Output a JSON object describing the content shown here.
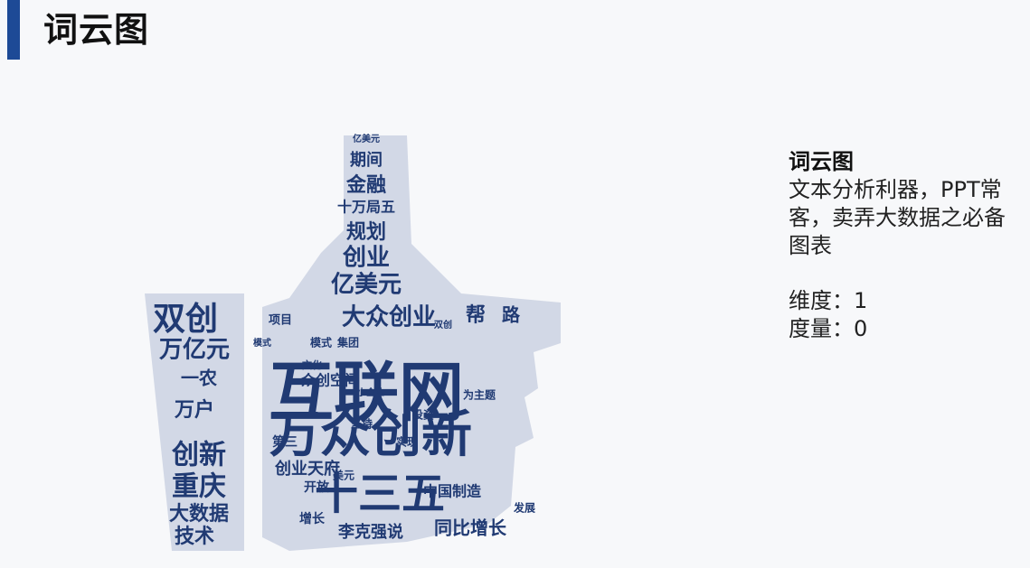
{
  "header": {
    "title": "词云图",
    "accent_color": "#1d4a96"
  },
  "cloud": {
    "word_color": "#203a73",
    "shape": "thumbs-up",
    "words": [
      "亿美元",
      "期间",
      "金融",
      "十万局五",
      "规划",
      "创业",
      "亿美元",
      "双创",
      "大众创业",
      "帮",
      "路",
      "万亿元",
      "一农",
      "互联网",
      "万户",
      "创新",
      "重庆",
      "大数据",
      "技术",
      "万众创新",
      "十三五",
      "众创空间",
      "项目",
      "模式",
      "集团",
      "文化",
      "开放",
      "增长",
      "中国制造",
      "同比增长",
      "李克强说",
      "创业天府",
      "第三",
      "美元",
      "实现",
      "投资",
      "为主题",
      "发展",
      "坚持",
      "小企业",
      "双创",
      "模式"
    ]
  },
  "side": {
    "heading": "词云图",
    "description": "文本分析利器，PPT常客，卖弄大数据之必备图表",
    "dimension": "维度：1",
    "measure": "度量：0"
  }
}
